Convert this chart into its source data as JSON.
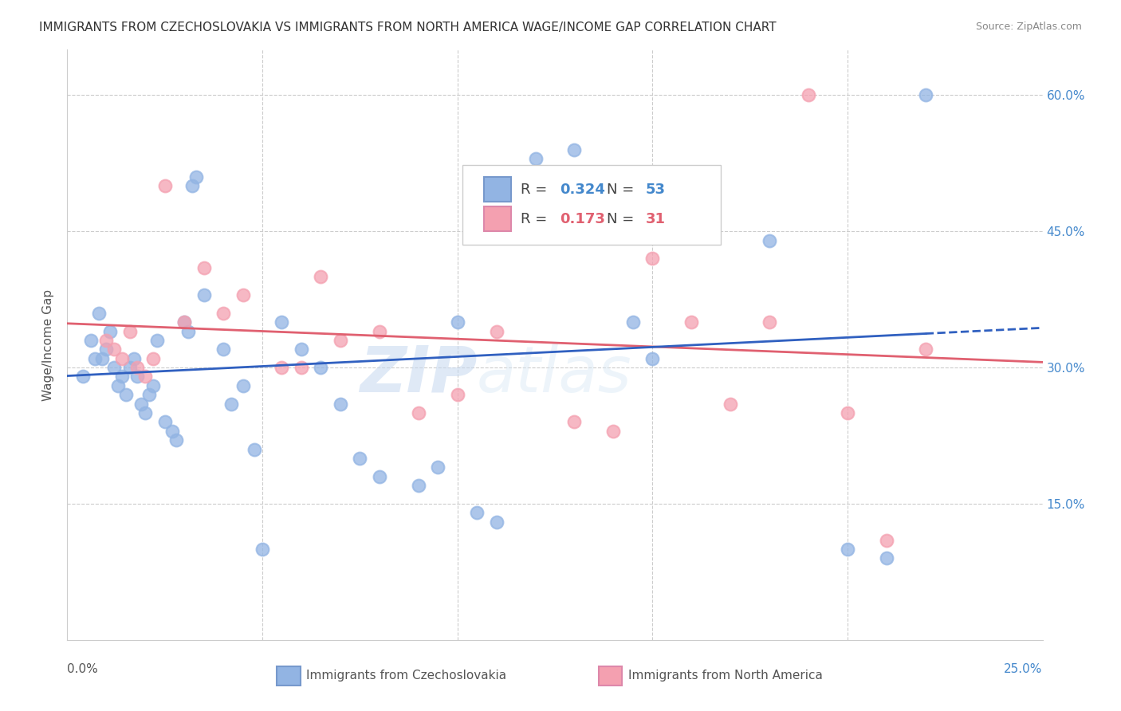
{
  "title": "IMMIGRANTS FROM CZECHOSLOVAKIA VS IMMIGRANTS FROM NORTH AMERICA WAGE/INCOME GAP CORRELATION CHART",
  "source": "Source: ZipAtlas.com",
  "ylabel": "Wage/Income Gap",
  "xmin": 0.0,
  "xmax": 0.25,
  "ymin": 0.0,
  "ymax": 0.65,
  "yticks": [
    0.15,
    0.3,
    0.45,
    0.6
  ],
  "ytick_labels": [
    "15.0%",
    "30.0%",
    "45.0%",
    "60.0%"
  ],
  "xtick_grid": [
    0.05,
    0.1,
    0.15,
    0.2
  ],
  "watermark_zip": "ZIP",
  "watermark_atlas": "atlas",
  "legend_blue_r": "0.324",
  "legend_blue_n": "53",
  "legend_pink_r": "0.173",
  "legend_pink_n": "31",
  "legend_blue_label": "Immigrants from Czechoslovakia",
  "legend_pink_label": "Immigrants from North America",
  "blue_color": "#92b4e3",
  "pink_color": "#f4a0b0",
  "line_blue_color": "#3060c0",
  "line_pink_color": "#e06070",
  "blue_x": [
    0.004,
    0.006,
    0.007,
    0.008,
    0.009,
    0.01,
    0.011,
    0.012,
    0.013,
    0.014,
    0.015,
    0.016,
    0.017,
    0.018,
    0.019,
    0.02,
    0.021,
    0.022,
    0.023,
    0.025,
    0.027,
    0.028,
    0.03,
    0.031,
    0.032,
    0.033,
    0.035,
    0.04,
    0.042,
    0.045,
    0.048,
    0.05,
    0.055,
    0.06,
    0.065,
    0.07,
    0.075,
    0.08,
    0.09,
    0.095,
    0.1,
    0.105,
    0.11,
    0.12,
    0.13,
    0.14,
    0.145,
    0.15,
    0.16,
    0.18,
    0.2,
    0.21,
    0.22
  ],
  "blue_y": [
    0.29,
    0.33,
    0.31,
    0.36,
    0.31,
    0.32,
    0.34,
    0.3,
    0.28,
    0.29,
    0.27,
    0.3,
    0.31,
    0.29,
    0.26,
    0.25,
    0.27,
    0.28,
    0.33,
    0.24,
    0.23,
    0.22,
    0.35,
    0.34,
    0.5,
    0.51,
    0.38,
    0.32,
    0.26,
    0.28,
    0.21,
    0.1,
    0.35,
    0.32,
    0.3,
    0.26,
    0.2,
    0.18,
    0.17,
    0.19,
    0.35,
    0.14,
    0.13,
    0.53,
    0.54,
    0.46,
    0.35,
    0.31,
    0.47,
    0.44,
    0.1,
    0.09,
    0.6
  ],
  "pink_x": [
    0.01,
    0.012,
    0.014,
    0.016,
    0.018,
    0.02,
    0.022,
    0.025,
    0.03,
    0.035,
    0.04,
    0.045,
    0.055,
    0.06,
    0.065,
    0.07,
    0.08,
    0.09,
    0.1,
    0.11,
    0.12,
    0.13,
    0.14,
    0.15,
    0.16,
    0.17,
    0.18,
    0.19,
    0.2,
    0.21,
    0.22
  ],
  "pink_y": [
    0.33,
    0.32,
    0.31,
    0.34,
    0.3,
    0.29,
    0.31,
    0.5,
    0.35,
    0.41,
    0.36,
    0.38,
    0.3,
    0.3,
    0.4,
    0.33,
    0.34,
    0.25,
    0.27,
    0.34,
    0.47,
    0.24,
    0.23,
    0.42,
    0.35,
    0.26,
    0.35,
    0.6,
    0.25,
    0.11,
    0.32
  ]
}
